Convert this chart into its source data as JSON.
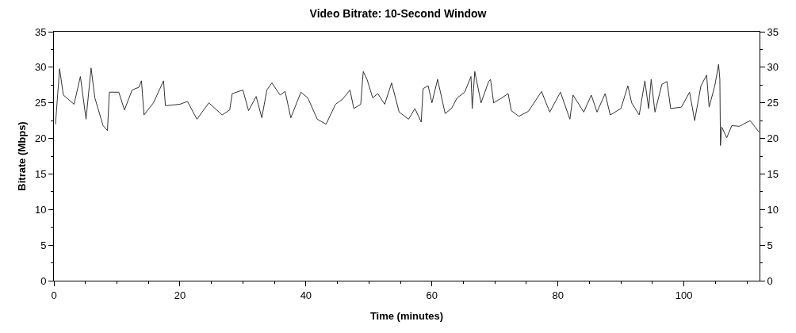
{
  "chart_data": {
    "type": "line",
    "title": "Video Bitrate: 10-Second Window",
    "xlabel": "Time (minutes)",
    "ylabel": "Bitrate (Mbps)",
    "xlim": [
      0,
      112
    ],
    "xticks": [
      0,
      20,
      40,
      60,
      80,
      100
    ],
    "ylim": [
      0,
      35
    ],
    "yticks": [
      0,
      5,
      10,
      15,
      20,
      25,
      30,
      35
    ],
    "y2lim": [
      0,
      35
    ],
    "y2ticks": [
      0,
      5,
      10,
      15,
      20,
      25,
      30,
      35
    ],
    "grid": false,
    "marker": "none",
    "line_style": "solid",
    "series": [
      {
        "color": "#333333",
        "x": [
          0.25,
          0.9,
          1.5,
          3.2,
          4.2,
          5.1,
          5.9,
          6.5,
          7.8,
          8.5,
          8.8,
          10.3,
          11.2,
          12.4,
          13.5,
          13.9,
          14.3,
          15.8,
          17.4,
          17.7,
          20,
          21.2,
          22.7,
          24.6,
          26.7,
          27.9,
          28.3,
          30.0,
          30.9,
          32.1,
          33.0,
          33.8,
          34.6,
          35.9,
          36.7,
          37.6,
          39.2,
          40.3,
          41.8,
          43.2,
          44.7,
          45.8,
          47.0,
          47.6,
          48.7,
          49.1,
          49.7,
          50.6,
          51.4,
          52.5,
          53.6,
          54.8,
          56.3,
          57.3,
          58.3,
          58.6,
          59.4,
          60.0,
          60.9,
          62.1,
          63.1,
          64.0,
          65.2,
          66.2,
          66.4,
          66.8,
          67.8,
          69.0,
          69.3,
          69.8,
          71.1,
          72.1,
          72.6,
          73.8,
          75.3,
          77.4,
          78.7,
          80.4,
          81.9,
          82.4,
          84.1,
          85.3,
          86.2,
          87.5,
          88.3,
          90.0,
          91.1,
          91.7,
          92.9,
          93.8,
          94.4,
          94.8,
          95.4,
          96.5,
          97.3,
          97.9,
          99.6,
          100.9,
          101.7,
          102.7,
          103.6,
          104.0,
          104.9,
          105.5,
          105.7,
          105.8,
          106.0,
          106.8,
          107.6,
          108.8,
          110.5,
          111.3,
          111.9
        ],
        "values": [
          22.0,
          29.8,
          26.1,
          24.8,
          28.7,
          22.7,
          29.9,
          25.7,
          21.8,
          21.1,
          26.5,
          26.5,
          24.0,
          26.8,
          27.2,
          28.1,
          23.3,
          25.0,
          28.1,
          24.6,
          24.8,
          25.2,
          22.7,
          25.0,
          23.3,
          24.0,
          26.3,
          26.8,
          23.9,
          25.9,
          22.9,
          26.8,
          27.8,
          26.1,
          26.6,
          22.9,
          26.5,
          25.7,
          22.7,
          22.0,
          24.8,
          25.5,
          26.8,
          24.2,
          24.8,
          29.4,
          28.3,
          25.7,
          26.3,
          24.8,
          27.8,
          23.7,
          22.7,
          24.2,
          22.3,
          27.0,
          27.4,
          25.0,
          28.3,
          23.5,
          24.2,
          25.7,
          26.5,
          28.7,
          24.2,
          29.4,
          25.0,
          28.0,
          28.3,
          25.0,
          25.7,
          26.3,
          23.9,
          23.1,
          23.8,
          26.6,
          23.7,
          26.5,
          22.7,
          26.1,
          23.7,
          26.1,
          23.7,
          26.3,
          23.3,
          24.2,
          27.4,
          25.0,
          23.3,
          28.1,
          24.2,
          28.3,
          23.7,
          27.6,
          28.0,
          24.2,
          24.4,
          26.5,
          22.5,
          27.4,
          28.9,
          24.4,
          27.4,
          30.4,
          28.3,
          19.0,
          21.6,
          20.1,
          21.8,
          21.7,
          22.5,
          21.6,
          20.9
        ]
      }
    ]
  }
}
